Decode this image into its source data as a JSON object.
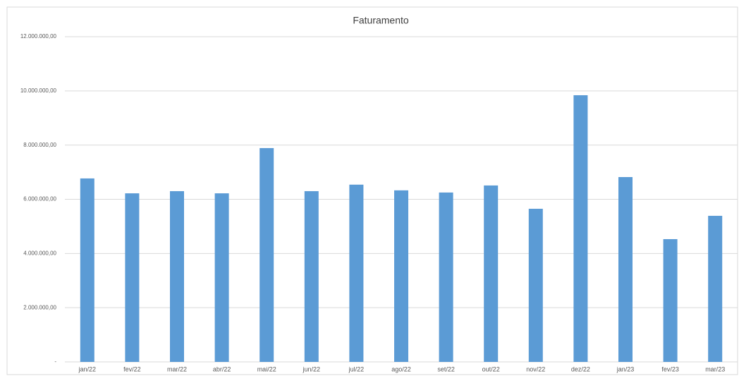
{
  "chart_data": {
    "type": "bar",
    "title": "Faturamento",
    "categories": [
      "jan/22",
      "fev/22",
      "mar/22",
      "abr/22",
      "mai/22",
      "jun/22",
      "jul/22",
      "ago/22",
      "set/22",
      "out/22",
      "nov/22",
      "dez/22",
      "jan/23",
      "fev/23",
      "mar/23"
    ],
    "values": [
      6770000,
      6220000,
      6300000,
      6220000,
      7890000,
      6300000,
      6540000,
      6330000,
      6250000,
      6510000,
      5650000,
      9840000,
      6820000,
      4530000,
      5390000
    ],
    "color": "#5b9bd5",
    "ylim": [
      0,
      12000000
    ],
    "yticks": [
      {
        "value": 0,
        "label": "-"
      },
      {
        "value": 2000000,
        "label": "2.000.000,00"
      },
      {
        "value": 4000000,
        "label": "4.000.000,00"
      },
      {
        "value": 6000000,
        "label": "6.000.000,00"
      },
      {
        "value": 8000000,
        "label": "8.000.000,00"
      },
      {
        "value": 10000000,
        "label": "10.000.000,00"
      },
      {
        "value": 12000000,
        "label": "12.000.000,00"
      }
    ],
    "grid": true
  }
}
